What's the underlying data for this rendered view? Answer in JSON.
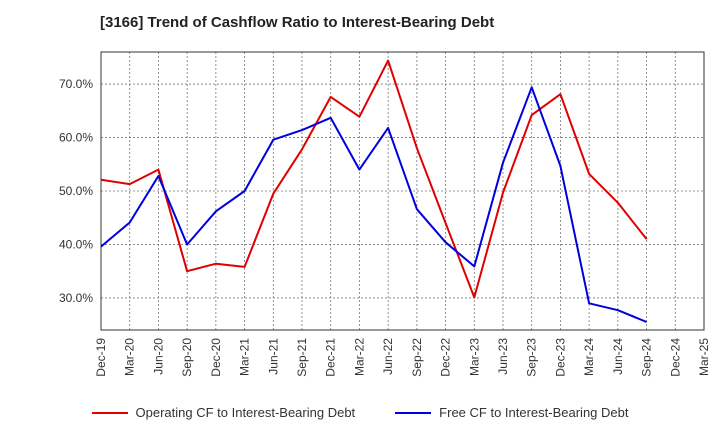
{
  "title": "[3166]  Trend of Cashflow Ratio to Interest-Bearing Debt",
  "chart_data": {
    "type": "line",
    "title": "[3166]  Trend of Cashflow Ratio to Interest-Bearing Debt",
    "categories": [
      "Dec-19",
      "Mar-20",
      "Jun-20",
      "Sep-20",
      "Dec-20",
      "Mar-21",
      "Jun-21",
      "Sep-21",
      "Dec-21",
      "Mar-22",
      "Jun-22",
      "Sep-22",
      "Dec-22",
      "Mar-23",
      "Jun-23",
      "Sep-23",
      "Dec-23",
      "Mar-24",
      "Jun-24",
      "Sep-24",
      "Dec-24",
      "Mar-25"
    ],
    "yticks": [
      "30.0%",
      "40.0%",
      "50.0%",
      "60.0%",
      "70.0%"
    ],
    "ylim": [
      24,
      76
    ],
    "grid": true,
    "legend_position": "bottom",
    "series": [
      {
        "name": "Operating CF to Interest-Bearing Debt",
        "color": "#e00000",
        "values": [
          52.1,
          51.3,
          54.0,
          35.0,
          36.4,
          35.8,
          49.5,
          57.8,
          67.6,
          63.9,
          74.4,
          58.0,
          44.0,
          30.1,
          49.7,
          64.2,
          68.1,
          53.2,
          47.8,
          41.0,
          null,
          null
        ]
      },
      {
        "name": "Free CF to Interest-Bearing Debt",
        "color": "#0000dd",
        "values": [
          39.6,
          44.1,
          52.8,
          40.0,
          46.2,
          50.0,
          59.6,
          61.4,
          63.7,
          54.0,
          61.8,
          46.6,
          40.4,
          35.9,
          55.3,
          69.4,
          54.7,
          29.0,
          27.7,
          25.5,
          null,
          null
        ]
      }
    ]
  }
}
